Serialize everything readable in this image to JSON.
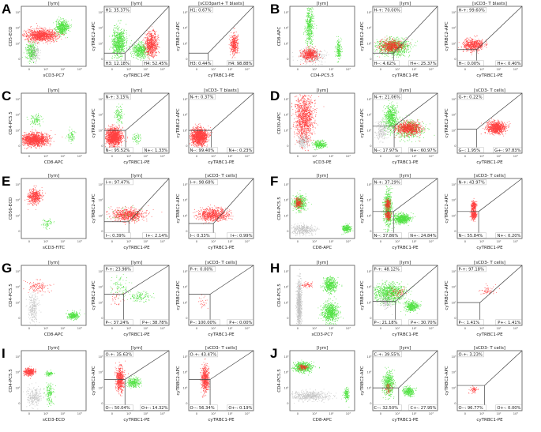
{
  "chart_data": {
    "type": "scatter",
    "colors": {
      "red_population": "#ff2020",
      "green_population": "#33dd22",
      "gray_population": "#9a9a9a"
    },
    "axis_scale": "biexponential (log)",
    "tick_labels": [
      "0",
      "10¹",
      "10²",
      "10³"
    ],
    "panels": [
      {
        "letter": "A",
        "plots": [
          {
            "title": "[lym]",
            "xlabel": "sCD3-PC7",
            "ylabel": "CD5-ECD"
          },
          {
            "title": "[lym]",
            "xlabel": "cyTRBC1-PE",
            "ylabel": "cyTRBC2-APC",
            "quadrants": {
              "tl": "H1: 35.37%",
              "bl": "H3: 12.18%",
              "br": "H4: 52.45%"
            }
          },
          {
            "title": "[sCD3part+ T blasts]",
            "xlabel": "cyTRBC1-PE",
            "ylabel": "cyTRBC2-APC",
            "quadrants": {
              "tl": "H1: 0.67%",
              "bl": "H3: 0.44%",
              "br": "H4: 98.88%"
            }
          }
        ]
      },
      {
        "letter": "B",
        "plots": [
          {
            "title": "[lym]",
            "xlabel": "CD4-PC5.5",
            "ylabel": "CD8-APC"
          },
          {
            "title": "[lym]",
            "xlabel": "cyTRBC1-PE",
            "ylabel": "cyTRBC2-APC",
            "quadrants": {
              "tl": "H-+: 70.00%",
              "bl": "H--: 4.62%",
              "br": "H+-: 25.37%"
            }
          },
          {
            "title": "[sCD3- T blasts]",
            "xlabel": "cyTRBC1-PE",
            "ylabel": "cyTRBC2-APC",
            "quadrants": {
              "tl": "H-+: 99.60%",
              "bl": "H--: 0.00%",
              "br": "H+-: 0.40%"
            }
          }
        ]
      },
      {
        "letter": "C",
        "plots": [
          {
            "title": "[lym]",
            "xlabel": "CD8-APC",
            "ylabel": "CD4-PC5.5"
          },
          {
            "title": "[lym]",
            "xlabel": "cyTRBC1-PE",
            "ylabel": "cyTRBC2-APC",
            "quadrants": {
              "tl": "N-+: 3.15%",
              "bl": "N--: 95.52%",
              "br": "N+-: 1.33%"
            }
          },
          {
            "title": "[sCD3- T blasts]",
            "xlabel": "cyTRBC1-PE",
            "ylabel": "cyTRBC2-APC",
            "quadrants": {
              "tl": "N-+: 0.37%",
              "bl": "N--: 99.40%",
              "br": "N+-: 0.23%"
            }
          }
        ]
      },
      {
        "letter": "D",
        "plots": [
          {
            "title": "[lym]",
            "xlabel": "sCD3-PE",
            "ylabel": "CD30-APC"
          },
          {
            "title": "[lym]",
            "xlabel": "cyTRBC1-PE",
            "ylabel": "cyTRBC2-APC",
            "quadrants": {
              "tl": "N-+: 21.06%",
              "bl": "N--: 17.97%",
              "br": "N+-: 60.97%"
            }
          },
          {
            "title": "[sCD3- T cells]",
            "xlabel": "cyTRBC1-PE",
            "ylabel": "cyTRBC2-APC",
            "quadrants": {
              "tl": "G-+: 0.22%",
              "bl": "G--: 1.95%",
              "br": "G+-: 97.83%"
            }
          }
        ]
      },
      {
        "letter": "E",
        "plots": [
          {
            "title": "[lym]",
            "xlabel": "sCD3-FITC",
            "ylabel": "CD56-ECD"
          },
          {
            "title": "[lym]",
            "xlabel": "cyTRBC1-PE",
            "ylabel": "cyTRBC2-APC",
            "quadrants": {
              "tl": "I-+: 97.47%",
              "bl": "I--: 0.39%",
              "br": "I+-: 2.14%"
            }
          },
          {
            "title": "[sCD3- T cells]",
            "xlabel": "cyTRBC1-PE",
            "ylabel": "cyTRBC2-APC",
            "quadrants": {
              "tl": "I-+: 98.68%",
              "bl": "I--: 0.33%",
              "br": "I+-: 0.99%"
            }
          }
        ]
      },
      {
        "letter": "F",
        "plots": [
          {
            "title": "[lym]",
            "xlabel": "CD8-APC",
            "ylabel": "CD4-PC5.5"
          },
          {
            "title": "[lym]",
            "xlabel": "cyTRBC1-PE",
            "ylabel": "cyTRBC2-APC",
            "quadrants": {
              "tl": "N-+: 37.29%",
              "bl": "N--: 37.86%",
              "br": "N+-: 24.84%"
            }
          },
          {
            "title": "[sCD3- T cells]",
            "xlabel": "cyTRBC1-PE",
            "ylabel": "cyTRBC2-APC",
            "quadrants": {
              "tl": "N-+: 43.97%",
              "bl": "N--: 55.84%",
              "br": "N+-: 0.20%"
            }
          }
        ]
      },
      {
        "letter": "G",
        "plots": [
          {
            "title": "[lym]",
            "xlabel": "CD8-APC",
            "ylabel": "CD4-PC5.5"
          },
          {
            "title": "[lym]",
            "xlabel": "cyTRBC1-PE",
            "ylabel": "cyTRBC2-APC",
            "quadrants": {
              "tl": "P-+: 23.98%",
              "bl": "P--: 37.24%",
              "br": "P+-: 38.78%"
            }
          },
          {
            "title": "[sCD3- T cells]",
            "xlabel": "cyTRBC1-PE",
            "ylabel": "cyTRBC2-APC",
            "quadrants": {
              "tl": "P-+: 0.00%",
              "bl": "P--: 100.00%",
              "br": "P+-: 0.00%"
            }
          }
        ]
      },
      {
        "letter": "H",
        "plots": [
          {
            "title": "[lym]",
            "xlabel": "sCD3-PC7",
            "ylabel": "CD4-PC5.5"
          },
          {
            "title": "[lym]",
            "xlabel": "cyTRBC1-PE",
            "ylabel": "cyTRBC2-APC",
            "quadrants": {
              "tl": "P-+: 48.12%",
              "bl": "P--: 21.18%",
              "br": "P+-: 30.70%"
            }
          },
          {
            "title": "[sCD3- T cells]",
            "xlabel": "cyTRBC1-PE",
            "ylabel": "cyTRBC2-APC",
            "quadrants": {
              "tl": "P-+: 97.18%",
              "bl": "P--: 1.41%",
              "br": "P+-: 1.41%"
            }
          }
        ]
      },
      {
        "letter": "I",
        "plots": [
          {
            "title": "[lym]",
            "xlabel": "sCD3-ECD",
            "ylabel": "CD4-PC5.5"
          },
          {
            "title": "[lym]",
            "xlabel": "cyTRBC1-PE",
            "ylabel": "cyTRBC2-APC",
            "quadrants": {
              "tl": "O-+: 35.63%",
              "bl": "O--: 50.04%",
              "br": "O+-: 14.32%"
            }
          },
          {
            "title": "[sCD3- T cells]",
            "xlabel": "cyTRBC1-PE",
            "ylabel": "cyTRBC2-APC",
            "quadrants": {
              "tl": "O-+: 43.47%",
              "bl": "O--: 56.34%",
              "br": "O+-: 0.19%"
            }
          }
        ]
      },
      {
        "letter": "J",
        "plots": [
          {
            "title": "[lym]",
            "xlabel": "CD8-APC",
            "ylabel": "CD4-PC5.5"
          },
          {
            "title": "[lym]",
            "xlabel": "cyTRBC1-PE",
            "ylabel": "cyTRBC2-APC",
            "quadrants": {
              "tl": "C-+: 39.55%",
              "bl": "C--: 32.50%",
              "br": "C+-: 27.95%"
            }
          },
          {
            "title": "[sCD3- T cells]",
            "xlabel": "cyTRBC1-PE",
            "ylabel": "cyTRBC2-APC",
            "quadrants": {
              "tl": "O-+: 3.23%",
              "bl": "O--: 96.77%",
              "br": "O+-: 0.00%"
            }
          }
        ]
      }
    ]
  }
}
